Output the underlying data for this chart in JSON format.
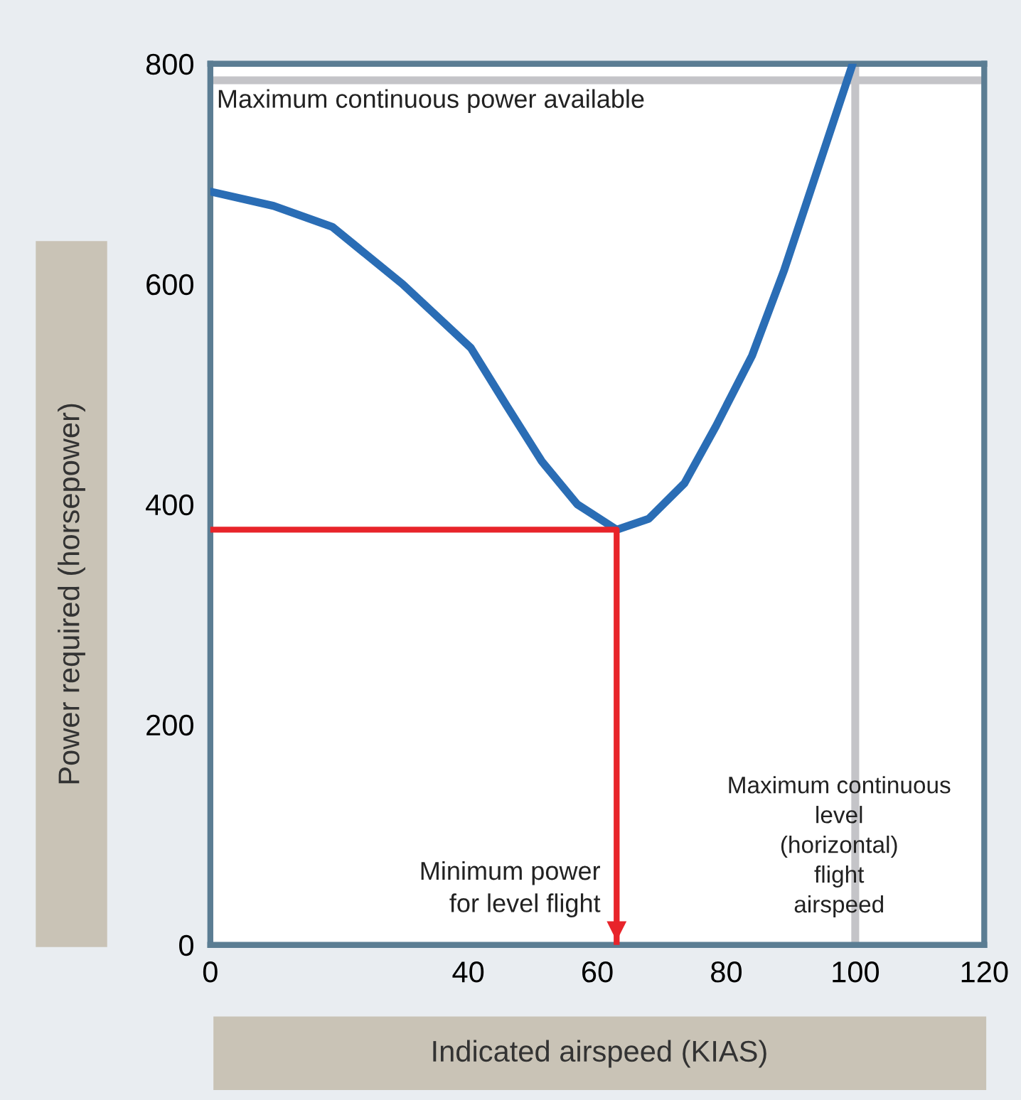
{
  "chart_data": {
    "type": "line",
    "xlabel": "Indicated airspeed (KIAS)",
    "ylabel": "Power required (horsepower)",
    "series": [
      {
        "color": "#2a6db5",
        "x": [
          0,
          9.8,
          18.9,
          29.8,
          40.4,
          45.9,
          51.4,
          56.9,
          63,
          68,
          73.5,
          78.4,
          84,
          89,
          94.5,
          99.6
        ],
        "values": [
          684,
          671,
          652,
          600,
          542,
          490,
          439,
          400,
          377,
          387,
          419,
          471,
          535,
          613,
          710,
          800
        ]
      },
      {
        "color": "#e8242a",
        "x": [
          0,
          63,
          63
        ],
        "values": [
          377,
          377,
          0
        ]
      }
    ],
    "ref_lines": [
      {
        "axis": "y",
        "value": 785,
        "label": "Maximum continuous power available",
        "color": "#c4c4c8"
      },
      {
        "axis": "x",
        "value": 100,
        "label": "Maximum continuous\nlevel\n(horizontal)\nflight\nairspeed",
        "color": "#c4c4c8"
      }
    ],
    "annotations": [
      {
        "text": "Minimum power\nfor level flight",
        "x": 63,
        "y": 0
      }
    ],
    "xlim": [
      0,
      120
    ],
    "xticks": [
      0,
      40,
      60,
      80,
      100,
      120
    ],
    "ylim": [
      0,
      800
    ],
    "yticks": [
      0,
      200,
      400,
      600,
      800
    ],
    "grid": false,
    "legend": false,
    "marker": "none",
    "line_style": "solid"
  }
}
